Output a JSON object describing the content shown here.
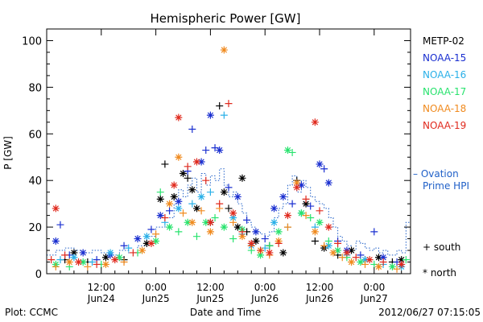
{
  "chart_data": {
    "type": "scatter",
    "title": "Hemispheric Power [GW]",
    "ylabel": "P [GW]",
    "xlabel": "Date and Time",
    "ylim": [
      0,
      105
    ],
    "xlim": [
      0,
      80
    ],
    "yticks": [
      0,
      20,
      40,
      60,
      80,
      100
    ],
    "xticks": [
      {
        "x": 12,
        "time": "12:00",
        "date": "Jun24"
      },
      {
        "x": 24,
        "time": "0:00",
        "date": "Jun25"
      },
      {
        "x": 36,
        "time": "12:00",
        "date": "Jun25"
      },
      {
        "x": 48,
        "time": "0:00",
        "date": "Jun26"
      },
      {
        "x": 60,
        "time": "12:00",
        "date": "Jun26"
      },
      {
        "x": 72,
        "time": "0:00",
        "date": "Jun27"
      }
    ],
    "legend_position": "right",
    "marker_legend": {
      "south": "+ south",
      "north": "* north"
    },
    "series": [
      {
        "name": "METP-02",
        "color": "#000000",
        "points": [
          [
            4,
            6,
            "s"
          ],
          [
            6,
            9,
            "n"
          ],
          [
            9,
            5,
            "s"
          ],
          [
            13,
            7,
            "n"
          ],
          [
            17,
            6,
            "s"
          ],
          [
            22,
            13,
            "n"
          ],
          [
            25,
            32,
            "n"
          ],
          [
            26,
            47,
            "s"
          ],
          [
            28,
            33,
            "n"
          ],
          [
            30,
            43,
            "n"
          ],
          [
            31,
            41,
            "s"
          ],
          [
            32,
            36,
            "n"
          ],
          [
            33,
            28,
            "n"
          ],
          [
            36,
            22,
            "n"
          ],
          [
            38,
            72,
            "s"
          ],
          [
            39,
            35,
            "n"
          ],
          [
            40,
            28,
            "s"
          ],
          [
            42,
            20,
            "n"
          ],
          [
            43,
            41,
            "n"
          ],
          [
            44,
            18,
            "s"
          ],
          [
            46,
            14,
            "n"
          ],
          [
            49,
            12,
            "s"
          ],
          [
            52,
            9,
            "n"
          ],
          [
            55,
            40,
            "s"
          ],
          [
            57,
            30,
            "n"
          ],
          [
            59,
            14,
            "s"
          ],
          [
            61,
            11,
            "n"
          ],
          [
            64,
            8,
            "s"
          ],
          [
            67,
            10,
            "n"
          ],
          [
            70,
            6,
            "s"
          ],
          [
            73,
            7,
            "n"
          ],
          [
            76,
            5,
            "s"
          ],
          [
            78,
            6,
            "n"
          ]
        ]
      },
      {
        "name": "NOAA-15",
        "color": "#1a2fd0",
        "points": [
          [
            2,
            14,
            "n"
          ],
          [
            3,
            21,
            "s"
          ],
          [
            5,
            8,
            "s"
          ],
          [
            8,
            9,
            "n"
          ],
          [
            11,
            6,
            "s"
          ],
          [
            14,
            8,
            "n"
          ],
          [
            17,
            12,
            "s"
          ],
          [
            20,
            15,
            "n"
          ],
          [
            23,
            19,
            "s"
          ],
          [
            25,
            25,
            "n"
          ],
          [
            27,
            27,
            "s"
          ],
          [
            29,
            31,
            "n"
          ],
          [
            31,
            44,
            "s"
          ],
          [
            32,
            62,
            "s"
          ],
          [
            34,
            48,
            "n"
          ],
          [
            35,
            53,
            "s"
          ],
          [
            36,
            68,
            "n"
          ],
          [
            37,
            54,
            "s"
          ],
          [
            38,
            53,
            "n"
          ],
          [
            40,
            37,
            "s"
          ],
          [
            42,
            33,
            "n"
          ],
          [
            44,
            23,
            "s"
          ],
          [
            46,
            18,
            "n"
          ],
          [
            48,
            15,
            "s"
          ],
          [
            50,
            28,
            "n"
          ],
          [
            52,
            33,
            "n"
          ],
          [
            54,
            30,
            "s"
          ],
          [
            56,
            38,
            "n"
          ],
          [
            58,
            29,
            "s"
          ],
          [
            60,
            47,
            "n"
          ],
          [
            61,
            45,
            "s"
          ],
          [
            62,
            39,
            "n"
          ],
          [
            64,
            14,
            "s"
          ],
          [
            66,
            10,
            "n"
          ],
          [
            69,
            8,
            "s"
          ],
          [
            72,
            18,
            "s"
          ],
          [
            74,
            7,
            "n"
          ],
          [
            77,
            5,
            "s"
          ]
        ]
      },
      {
        "name": "NOAA-16",
        "color": "#2ab0e8",
        "points": [
          [
            3,
            6,
            "s"
          ],
          [
            6,
            7,
            "n"
          ],
          [
            10,
            5,
            "s"
          ],
          [
            14,
            9,
            "n"
          ],
          [
            18,
            11,
            "s"
          ],
          [
            22,
            16,
            "n"
          ],
          [
            26,
            22,
            "s"
          ],
          [
            29,
            28,
            "n"
          ],
          [
            32,
            30,
            "s"
          ],
          [
            34,
            33,
            "n"
          ],
          [
            36,
            35,
            "s"
          ],
          [
            39,
            68,
            "s"
          ],
          [
            41,
            24,
            "n"
          ],
          [
            43,
            17,
            "s"
          ],
          [
            45,
            12,
            "n"
          ],
          [
            48,
            11,
            "s"
          ],
          [
            50,
            22,
            "n"
          ],
          [
            53,
            20,
            "s"
          ],
          [
            56,
            26,
            "n"
          ],
          [
            59,
            20,
            "s"
          ],
          [
            62,
            12,
            "n"
          ],
          [
            66,
            8,
            "s"
          ],
          [
            70,
            6,
            "n"
          ],
          [
            74,
            4,
            "s"
          ],
          [
            78,
            3,
            "n"
          ]
        ]
      },
      {
        "name": "NOAA-17",
        "color": "#28e36e",
        "points": [
          [
            2,
            4,
            "n"
          ],
          [
            5,
            3,
            "s"
          ],
          [
            8,
            5,
            "n"
          ],
          [
            12,
            4,
            "s"
          ],
          [
            16,
            7,
            "n"
          ],
          [
            20,
            9,
            "s"
          ],
          [
            24,
            14,
            "n"
          ],
          [
            25,
            35,
            "s"
          ],
          [
            27,
            20,
            "n"
          ],
          [
            29,
            18,
            "s"
          ],
          [
            31,
            22,
            "n"
          ],
          [
            33,
            16,
            "s"
          ],
          [
            35,
            22,
            "n"
          ],
          [
            37,
            24,
            "s"
          ],
          [
            39,
            20,
            "n"
          ],
          [
            41,
            15,
            "s"
          ],
          [
            43,
            19,
            "n"
          ],
          [
            45,
            10,
            "s"
          ],
          [
            47,
            8,
            "n"
          ],
          [
            49,
            12,
            "s"
          ],
          [
            51,
            18,
            "n"
          ],
          [
            53,
            53,
            "n"
          ],
          [
            54,
            52,
            "s"
          ],
          [
            56,
            26,
            "n"
          ],
          [
            58,
            24,
            "s"
          ],
          [
            60,
            22,
            "n"
          ],
          [
            62,
            14,
            "s"
          ],
          [
            64,
            10,
            "n"
          ],
          [
            66,
            7,
            "s"
          ],
          [
            69,
            5,
            "n"
          ],
          [
            72,
            4,
            "s"
          ],
          [
            76,
            3,
            "n"
          ],
          [
            79,
            6,
            "s"
          ]
        ]
      },
      {
        "name": "NOAA-18",
        "color": "#f08a1e",
        "points": [
          [
            2,
            3,
            "s"
          ],
          [
            5,
            5,
            "n"
          ],
          [
            9,
            3,
            "s"
          ],
          [
            13,
            4,
            "n"
          ],
          [
            17,
            5,
            "s"
          ],
          [
            21,
            10,
            "n"
          ],
          [
            24,
            17,
            "s"
          ],
          [
            27,
            30,
            "n"
          ],
          [
            29,
            50,
            "n"
          ],
          [
            30,
            26,
            "s"
          ],
          [
            32,
            22,
            "n"
          ],
          [
            34,
            27,
            "s"
          ],
          [
            36,
            18,
            "n"
          ],
          [
            38,
            28,
            "s"
          ],
          [
            39,
            96,
            "n"
          ],
          [
            41,
            22,
            "s"
          ],
          [
            43,
            16,
            "n"
          ],
          [
            45,
            12,
            "s"
          ],
          [
            47,
            10,
            "n"
          ],
          [
            49,
            8,
            "s"
          ],
          [
            51,
            14,
            "n"
          ],
          [
            53,
            20,
            "s"
          ],
          [
            55,
            39,
            "n"
          ],
          [
            57,
            25,
            "s"
          ],
          [
            59,
            18,
            "n"
          ],
          [
            61,
            12,
            "s"
          ],
          [
            63,
            9,
            "n"
          ],
          [
            65,
            7,
            "s"
          ],
          [
            67,
            5,
            "n"
          ],
          [
            70,
            4,
            "s"
          ],
          [
            73,
            3,
            "n"
          ],
          [
            77,
            2,
            "s"
          ]
        ]
      },
      {
        "name": "NOAA-19",
        "color": "#e02a1e",
        "points": [
          [
            1,
            6,
            "s"
          ],
          [
            2,
            28,
            "n"
          ],
          [
            4,
            8,
            "s"
          ],
          [
            7,
            5,
            "n"
          ],
          [
            11,
            4,
            "s"
          ],
          [
            15,
            6,
            "n"
          ],
          [
            19,
            9,
            "s"
          ],
          [
            23,
            13,
            "n"
          ],
          [
            26,
            24,
            "s"
          ],
          [
            28,
            38,
            "n"
          ],
          [
            29,
            67,
            "n"
          ],
          [
            31,
            46,
            "s"
          ],
          [
            33,
            48,
            "n"
          ],
          [
            35,
            40,
            "s"
          ],
          [
            36,
            22,
            "n"
          ],
          [
            38,
            30,
            "s"
          ],
          [
            40,
            73,
            "s"
          ],
          [
            41,
            26,
            "n"
          ],
          [
            43,
            18,
            "s"
          ],
          [
            45,
            13,
            "n"
          ],
          [
            47,
            10,
            "s"
          ],
          [
            49,
            9,
            "n"
          ],
          [
            51,
            13,
            "s"
          ],
          [
            53,
            25,
            "n"
          ],
          [
            55,
            37,
            "n"
          ],
          [
            57,
            32,
            "s"
          ],
          [
            59,
            65,
            "n"
          ],
          [
            60,
            27,
            "s"
          ],
          [
            62,
            20,
            "n"
          ],
          [
            64,
            13,
            "s"
          ],
          [
            66,
            9,
            "n"
          ],
          [
            68,
            7,
            "s"
          ],
          [
            71,
            6,
            "n"
          ],
          [
            74,
            5,
            "s"
          ],
          [
            78,
            4,
            "n"
          ]
        ]
      }
    ],
    "ovation": {
      "name": "Ovation Prime HPI",
      "line1": "– Ovation",
      "line2": "Prime HPI",
      "color": "#2060c8",
      "values": [
        [
          0,
          8
        ],
        [
          2,
          10
        ],
        [
          4,
          11
        ],
        [
          6,
          10
        ],
        [
          8,
          9
        ],
        [
          10,
          10
        ],
        [
          12,
          9
        ],
        [
          14,
          8
        ],
        [
          16,
          10
        ],
        [
          18,
          9
        ],
        [
          20,
          12
        ],
        [
          22,
          16
        ],
        [
          24,
          20
        ],
        [
          26,
          24
        ],
        [
          28,
          30
        ],
        [
          29,
          36
        ],
        [
          30,
          33
        ],
        [
          31,
          38
        ],
        [
          32,
          41
        ],
        [
          33,
          35
        ],
        [
          34,
          43
        ],
        [
          35,
          38
        ],
        [
          36,
          42
        ],
        [
          37,
          40
        ],
        [
          38,
          45
        ],
        [
          39,
          38
        ],
        [
          40,
          33
        ],
        [
          41,
          35
        ],
        [
          42,
          30
        ],
        [
          43,
          26
        ],
        [
          44,
          22
        ],
        [
          45,
          20
        ],
        [
          46,
          18
        ],
        [
          47,
          17
        ],
        [
          48,
          16
        ],
        [
          49,
          18
        ],
        [
          50,
          24
        ],
        [
          51,
          28
        ],
        [
          52,
          30
        ],
        [
          53,
          38
        ],
        [
          54,
          42
        ],
        [
          55,
          35
        ],
        [
          56,
          40
        ],
        [
          57,
          37
        ],
        [
          58,
          33
        ],
        [
          59,
          31
        ],
        [
          60,
          30
        ],
        [
          61,
          28
        ],
        [
          62,
          24
        ],
        [
          63,
          20
        ],
        [
          64,
          16
        ],
        [
          65,
          14
        ],
        [
          66,
          12
        ],
        [
          67,
          10
        ],
        [
          68,
          14
        ],
        [
          69,
          13
        ],
        [
          70,
          11
        ],
        [
          71,
          10
        ],
        [
          72,
          11
        ],
        [
          73,
          9
        ],
        [
          74,
          10
        ],
        [
          75,
          8
        ],
        [
          76,
          8
        ],
        [
          77,
          10
        ],
        [
          78,
          9
        ],
        [
          79,
          22
        ]
      ]
    }
  },
  "footer": {
    "left": "Plot: CCMC",
    "right": "2012/06/27 07:15:05"
  }
}
